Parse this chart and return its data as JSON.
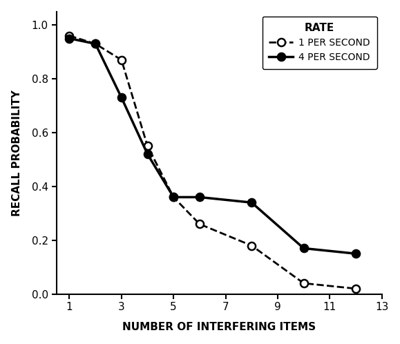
{
  "rate1_x": [
    1,
    2,
    3,
    4,
    5,
    6,
    8,
    10,
    12
  ],
  "rate1_y": [
    0.96,
    0.93,
    0.87,
    0.55,
    0.36,
    0.26,
    0.18,
    0.04,
    0.02
  ],
  "rate4_x": [
    1,
    2,
    3,
    4,
    5,
    6,
    8,
    10,
    12
  ],
  "rate4_y": [
    0.95,
    0.93,
    0.73,
    0.52,
    0.36,
    0.36,
    0.34,
    0.17,
    0.15
  ],
  "xlabel": "NUMBER OF INTERFERING ITEMS",
  "ylabel": "RECALL PROBABILITY",
  "xlim": [
    0.5,
    13
  ],
  "ylim": [
    0,
    1.05
  ],
  "xticks": [
    1,
    3,
    5,
    7,
    9,
    11,
    13
  ],
  "yticks": [
    0,
    0.2,
    0.4,
    0.6,
    0.8,
    1.0
  ],
  "legend_title": "RATE",
  "legend_label_1": "1 PER SECOND",
  "legend_label_4": "4 PER SECOND",
  "line_color": "#000000",
  "bg_color": "#ffffff"
}
